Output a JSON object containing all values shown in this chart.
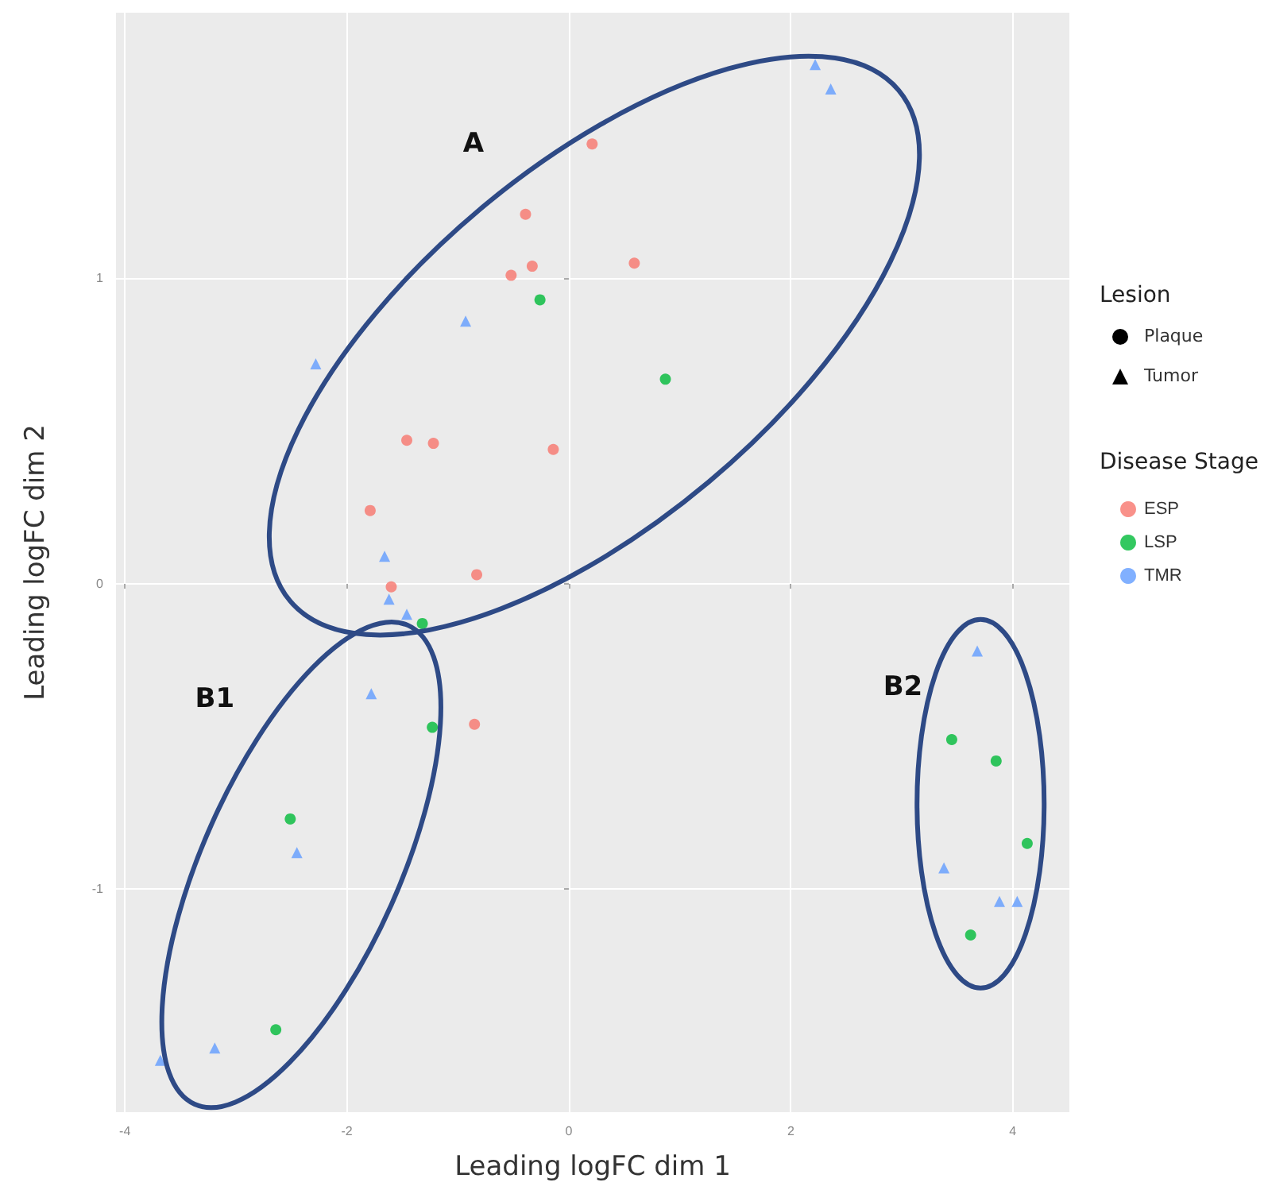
{
  "chart_data": {
    "type": "scatter",
    "xlabel": "Leading logFC dim 1",
    "ylabel": "Leading logFC dim 2",
    "legend_title": "Disease Stage",
    "xlim": [
      -4.08,
      4.51
    ],
    "ylim": [
      -1.73,
      1.87
    ],
    "xticks": [
      -4,
      -2,
      0,
      2,
      4
    ],
    "yticks": [
      -1,
      0,
      1
    ],
    "grid": true,
    "legend": "right",
    "annotations": [
      "A",
      "B1",
      "B2",
      "Lesion",
      "Plaque",
      "Tumor"
    ],
    "series": [
      {
        "name": "ESP",
        "color": "#f8766d",
        "marker": "circle",
        "x": [
          0.21,
          -0.39,
          -0.33,
          -0.52,
          0.59,
          -1.46,
          -1.22,
          -0.14,
          -1.79,
          -0.83,
          -1.6,
          -0.85
        ],
        "values": [
          1.44,
          1.21,
          1.04,
          1.01,
          1.05,
          0.47,
          0.46,
          0.44,
          0.24,
          0.03,
          -0.01,
          -0.46
        ]
      },
      {
        "name": "LSP",
        "color": "#00ba38",
        "marker": "circle",
        "x": [
          -0.26,
          0.87,
          -1.32,
          -1.23,
          -2.51,
          -2.64,
          3.45,
          3.85,
          4.13,
          3.62
        ],
        "values": [
          0.93,
          0.67,
          -0.13,
          -0.47,
          -0.77,
          -1.46,
          -0.51,
          -0.58,
          -0.85,
          -1.15
        ]
      },
      {
        "name": "TMR",
        "color": "#619cff",
        "marker": "triangle",
        "x": [
          -0.93,
          -2.28,
          -1.66,
          -1.62,
          -1.46,
          -1.78,
          -2.45,
          -3.19,
          -3.68,
          2.22,
          2.36,
          3.68,
          3.38,
          3.88,
          4.04
        ],
        "values": [
          0.86,
          0.72,
          0.09,
          -0.05,
          -0.1,
          -0.36,
          -0.88,
          -1.52,
          -1.56,
          1.7,
          1.62,
          -0.22,
          -0.93,
          -1.04,
          -1.04
        ]
      }
    ]
  }
}
